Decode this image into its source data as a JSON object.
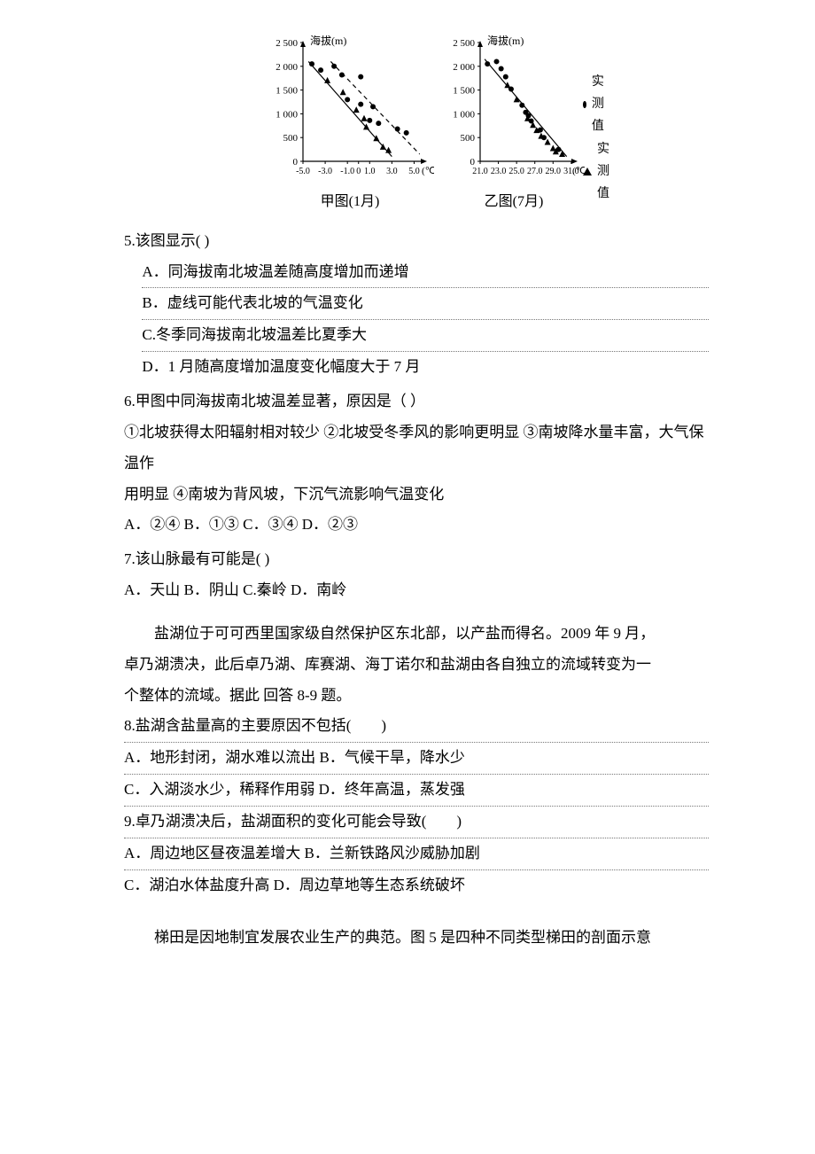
{
  "charts": {
    "left": {
      "caption": "甲图(1月)",
      "y_label": "海拔(m)",
      "x_unit": "(℃)",
      "y_ticks": [
        0,
        500,
        1000,
        1500,
        2000,
        2500
      ],
      "y_tick_labels": [
        "0",
        "500",
        "1 000",
        "1 500",
        "2 000",
        "2 500"
      ],
      "x_ticks": [
        -5,
        -3,
        -1,
        0,
        1,
        3,
        5
      ],
      "x_tick_labels": [
        "-5.0",
        "-3.0",
        "-1.0",
        "0",
        "1.0",
        "3.0",
        "5.0"
      ],
      "xlim": [
        -5,
        6
      ],
      "ylim": [
        0,
        2500
      ],
      "line_solid": {
        "x1": -4.5,
        "y1": 2100,
        "x2": 3.0,
        "y2": 100
      },
      "line_dashed": {
        "x1": -2.5,
        "y1": 2100,
        "x2": 5.5,
        "y2": 150
      },
      "dots": [
        [
          -4.2,
          2050
        ],
        [
          -3.4,
          1920
        ],
        [
          -2.2,
          2000
        ],
        [
          -1.5,
          1820
        ],
        [
          0.2,
          1780
        ],
        [
          -1.0,
          1300
        ],
        [
          0.2,
          1200
        ],
        [
          1.3,
          1150
        ],
        [
          1.0,
          860
        ],
        [
          1.8,
          800
        ],
        [
          3.5,
          680
        ],
        [
          4.3,
          600
        ]
      ],
      "tris": [
        [
          -2.8,
          1700
        ],
        [
          -1.4,
          1450
        ],
        [
          -0.2,
          1080
        ],
        [
          0.5,
          900
        ],
        [
          0.7,
          720
        ],
        [
          1.6,
          480
        ],
        [
          2.2,
          300
        ],
        [
          2.7,
          230
        ]
      ],
      "axis_color": "#000000",
      "bg": "#ffffff",
      "font_size": 12
    },
    "right": {
      "caption": "乙图(7月)",
      "y_label": "海拔(m)",
      "x_unit": "(℃)",
      "y_ticks": [
        0,
        500,
        1000,
        1500,
        2000,
        2500
      ],
      "y_tick_labels": [
        "0",
        "500",
        "1 000",
        "1 500",
        "2 000",
        "2 500"
      ],
      "x_ticks": [
        21,
        23,
        25,
        27,
        29,
        31
      ],
      "x_tick_labels": [
        "21.0",
        "23.0",
        "25.0",
        "27.0",
        "29.0",
        "31.0"
      ],
      "xlim": [
        21,
        31.5
      ],
      "ylim": [
        0,
        2500
      ],
      "line_solid": {
        "x1": 21.5,
        "y1": 2150,
        "x2": 30.5,
        "y2": 100
      },
      "dots": [
        [
          21.8,
          2050
        ],
        [
          22.8,
          2100
        ],
        [
          23.3,
          1950
        ],
        [
          23.8,
          1780
        ],
        [
          24.4,
          1520
        ],
        [
          25.6,
          1180
        ],
        [
          26.0,
          1030
        ],
        [
          26.3,
          960
        ],
        [
          26.6,
          850
        ],
        [
          27.6,
          660
        ],
        [
          28.0,
          500
        ],
        [
          29.6,
          250
        ]
      ],
      "tris": [
        [
          24.0,
          1600
        ],
        [
          25.0,
          1300
        ],
        [
          26.2,
          900
        ],
        [
          26.8,
          760
        ],
        [
          27.2,
          650
        ],
        [
          27.7,
          530
        ],
        [
          28.4,
          400
        ],
        [
          29.0,
          270
        ],
        [
          29.3,
          200
        ],
        [
          30.0,
          150
        ]
      ],
      "axis_color": "#000000",
      "bg": "#ffffff",
      "font_size": 12
    },
    "legend": {
      "a": "实测值",
      "b": "实测值"
    }
  },
  "q5": {
    "stem": "5.该图显示( )",
    "A": "A．同海拔南北坡温差随高度增加而递增",
    "B": "B．虚线可能代表北坡的气温变化",
    "C": "C.冬季同海拔南北坡温差比夏季大",
    "D": "D．1 月随高度增加温度变化幅度大于 7 月"
  },
  "q6": {
    "stem": "6.甲图中同海拔南北坡温差显著，原因是（ ）",
    "line1": "①北坡获得太阳辐射相对较少 ②北坡受冬季风的影响更明显 ③南坡降水量丰富，大气保温作",
    "line2": "用明显  ④南坡为背风坡，下沉气流影响气温变化",
    "opts": "A．②④  B．①③  C．③④  D．②③"
  },
  "q7": {
    "stem": "7.该山脉最有可能是( )",
    "opts": " A．天山  B．阴山  C.秦岭  D．南岭"
  },
  "passage2": {
    "l1": "盐湖位于可可西里国家级自然保护区东北部，以产盐而得名。2009 年 9 月，",
    "l2": "卓乃湖溃决，此后卓乃湖、库赛湖、海丁诺尔和盐湖由各自独立的流域转变为一",
    "l3": "个整体的流域。据此 回答 8-9 题。"
  },
  "q8": {
    "stem": " 8.盐湖含盐量高的主要原因不包括(　　)",
    "row1": "A．地形封闭，湖水难以流出         B．气候干旱，降水少",
    "row2": " C．入湖淡水少，稀释作用弱     D．终年高温，蒸发强"
  },
  "q9": {
    "stem": " 9.卓乃湖溃决后，盐湖面积的变化可能会导致(　　)",
    "row1": " A．周边地区昼夜温差增大      B．兰新铁路风沙威胁加剧",
    "row2": " C．湖泊水体盐度升高           D．周边草地等生态系统破坏"
  },
  "last": "梯田是因地制宜发展农业生产的典范。图 5 是四种不同类型梯田的剖面示意"
}
